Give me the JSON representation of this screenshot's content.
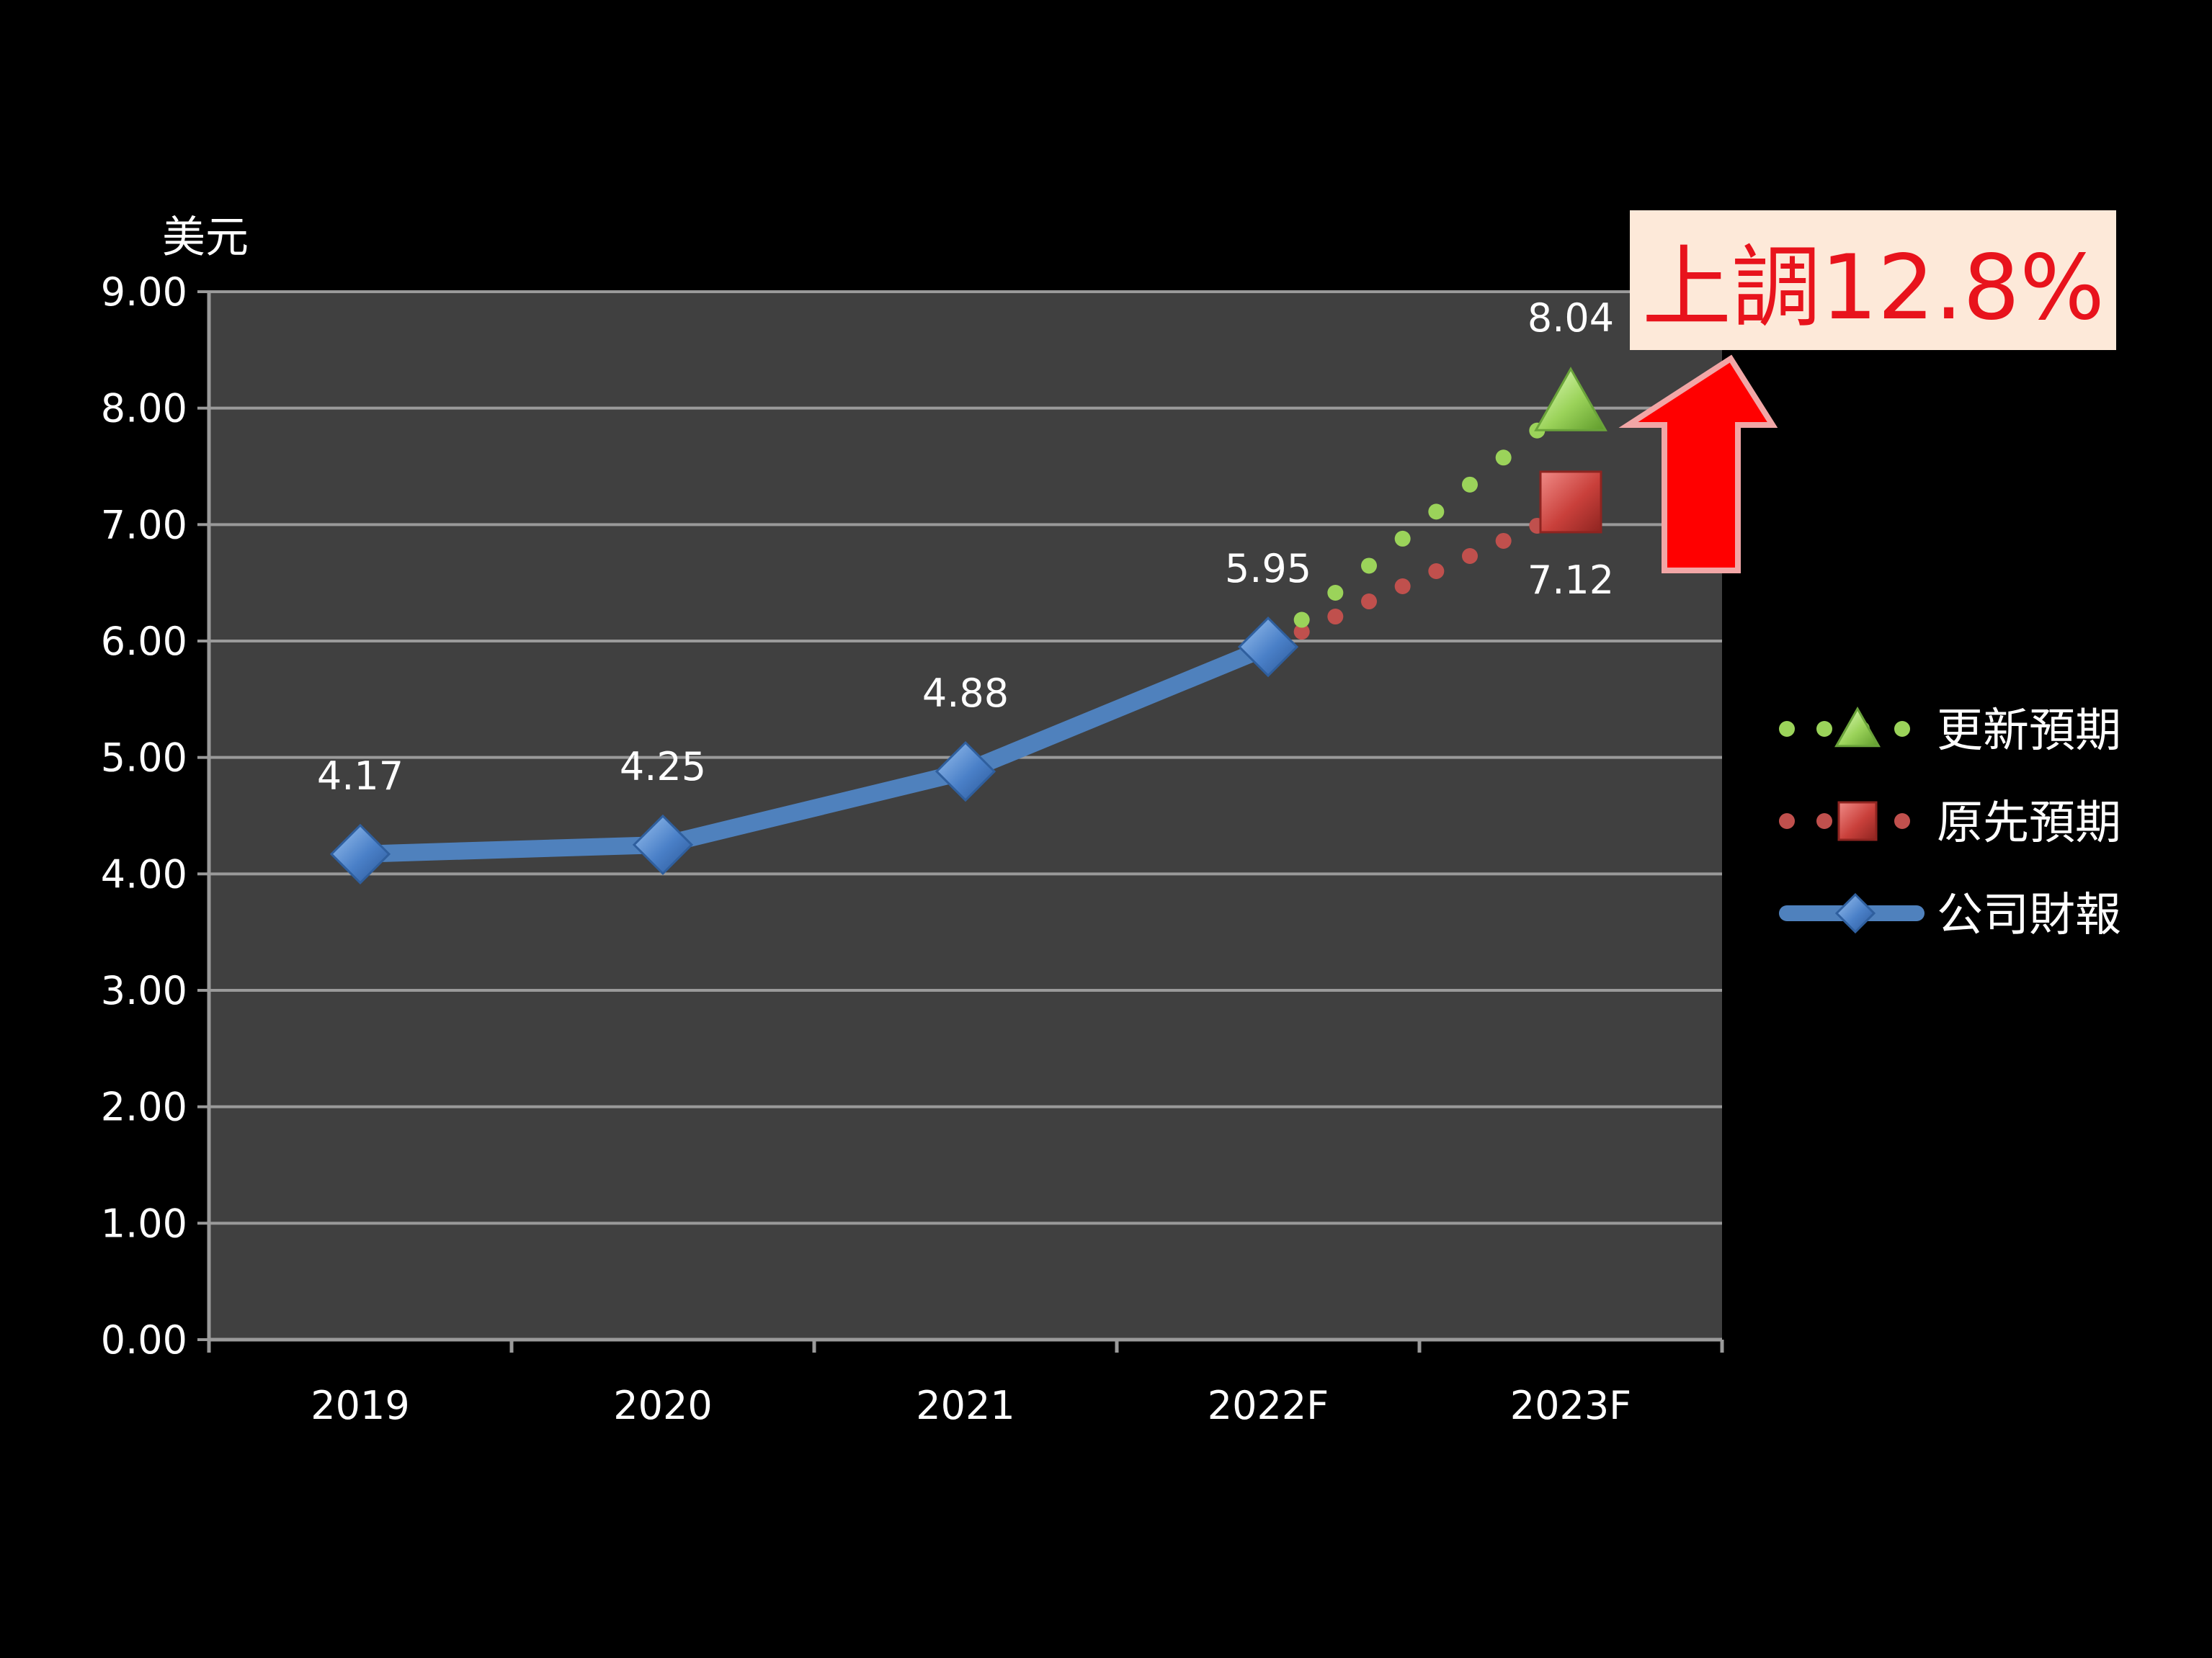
{
  "chart_data": {
    "type": "line",
    "categories": [
      "2019",
      "2020",
      "2021",
      "2022F",
      "2023F"
    ],
    "y_unit_label": "美元",
    "ylim": [
      0,
      9
    ],
    "y_ticks": [
      "0.00",
      "1.00",
      "2.00",
      "3.00",
      "4.00",
      "5.00",
      "6.00",
      "7.00",
      "8.00",
      "9.00"
    ],
    "grid": true,
    "legend_position": "right",
    "series": [
      {
        "name": "公司財報",
        "style": "solid",
        "marker": "diamond",
        "color": "#4f81bd",
        "x": [
          "2019",
          "2020",
          "2021",
          "2022F"
        ],
        "values": [
          4.17,
          4.25,
          4.88,
          5.95
        ],
        "labels": [
          "4.17",
          "4.25",
          "4.88",
          "5.95"
        ]
      },
      {
        "name": "原先預期",
        "style": "dotted",
        "marker": "square",
        "color": "#c0504d",
        "x": [
          "2022F",
          "2023F"
        ],
        "values": [
          5.95,
          7.12
        ],
        "labels": [
          "",
          "7.12"
        ]
      },
      {
        "name": "更新預期",
        "style": "dotted",
        "marker": "triangle",
        "color": "#9bd35a",
        "x": [
          "2022F",
          "2023F"
        ],
        "values": [
          5.95,
          8.04
        ],
        "labels": [
          "",
          "8.04"
        ]
      }
    ],
    "legend": [
      "更新預期",
      "原先預期",
      "公司財報"
    ],
    "annotation": {
      "text": "上調12.8%",
      "arrow": "up",
      "arrow_color": "#ff0000",
      "box_color": "#fde9d9",
      "text_color": "#e8131c"
    },
    "colors": {
      "plot_bg": "#404040",
      "page_bg": "#000000",
      "grid": "#9a9a9a",
      "text": "#ffffff"
    }
  }
}
